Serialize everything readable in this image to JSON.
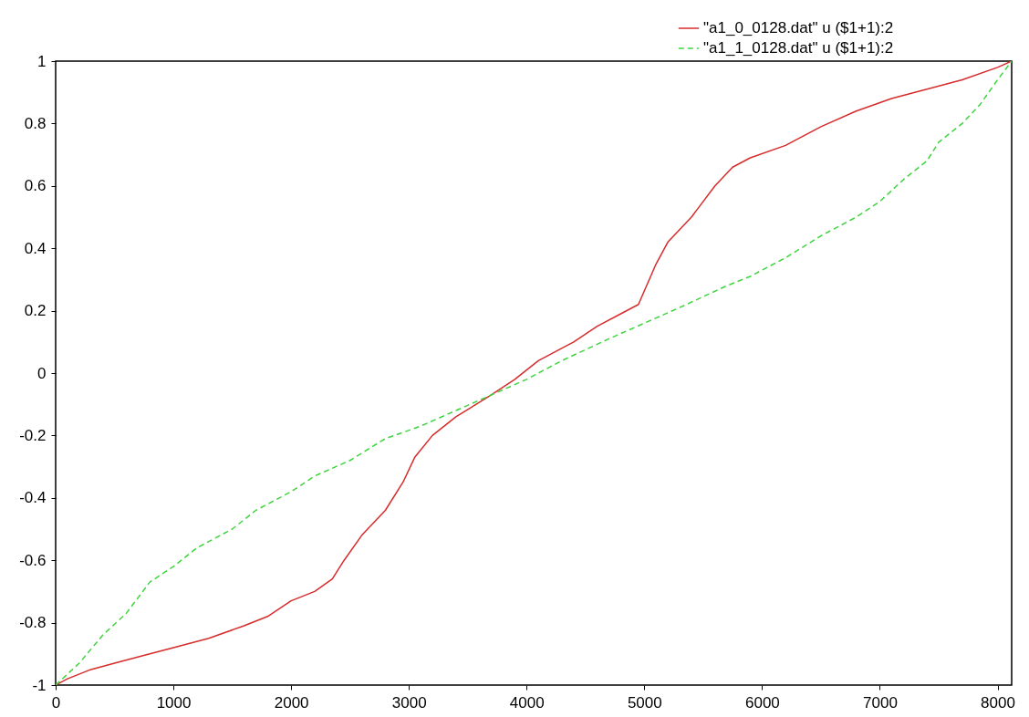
{
  "chart_data": {
    "type": "line",
    "xlim": [
      0,
      8120
    ],
    "xticks": [
      0,
      1000,
      2000,
      3000,
      4000,
      5000,
      6000,
      7000,
      8000
    ],
    "ylim": [
      -1,
      1
    ],
    "yticks": [
      -1,
      -0.8,
      -0.6,
      -0.4,
      -0.2,
      0,
      0.2,
      0.4,
      0.6,
      0.8,
      1
    ],
    "legend": "top right",
    "grid": false,
    "series": [
      {
        "name": "\"a1_0_0128.dat\" u ($1+1):2",
        "color": "#d62c2c",
        "line_style": "solid",
        "x": [
          0,
          100,
          300,
          500,
          800,
          1000,
          1300,
          1600,
          1800,
          2000,
          2200,
          2350,
          2450,
          2600,
          2800,
          2950,
          3050,
          3200,
          3400,
          3700,
          3900,
          4100,
          4400,
          4600,
          4800,
          4950,
          5100,
          5200,
          5400,
          5600,
          5750,
          5900,
          6200,
          6500,
          6800,
          7100,
          7400,
          7700,
          8000,
          8120
        ],
        "values": [
          -1,
          -0.98,
          -0.95,
          -0.93,
          -0.9,
          -0.88,
          -0.85,
          -0.81,
          -0.78,
          -0.73,
          -0.7,
          -0.66,
          -0.6,
          -0.52,
          -0.44,
          -0.35,
          -0.27,
          -0.2,
          -0.14,
          -0.07,
          -0.02,
          0.04,
          0.1,
          0.15,
          0.19,
          0.22,
          0.35,
          0.42,
          0.5,
          0.6,
          0.66,
          0.69,
          0.73,
          0.79,
          0.84,
          0.88,
          0.91,
          0.94,
          0.98,
          1
        ]
      },
      {
        "name": "\"a1_1_0128.dat\" u ($1+1):2",
        "color": "#3fd43f",
        "line_style": "dashed",
        "x": [
          0,
          200,
          400,
          600,
          800,
          1000,
          1200,
          1500,
          1700,
          2000,
          2200,
          2500,
          2800,
          3100,
          3400,
          3700,
          4000,
          4300,
          4700,
          5000,
          5300,
          5700,
          5900,
          6200,
          6500,
          6800,
          7000,
          7200,
          7400,
          7500,
          7700,
          7850,
          8000,
          8120
        ],
        "values": [
          -1,
          -0.93,
          -0.84,
          -0.77,
          -0.67,
          -0.62,
          -0.56,
          -0.5,
          -0.44,
          -0.38,
          -0.33,
          -0.28,
          -0.21,
          -0.17,
          -0.12,
          -0.07,
          -0.02,
          0.04,
          0.11,
          0.16,
          0.21,
          0.28,
          0.31,
          0.37,
          0.44,
          0.5,
          0.55,
          0.62,
          0.68,
          0.74,
          0.8,
          0.86,
          0.94,
          1
        ]
      }
    ]
  }
}
